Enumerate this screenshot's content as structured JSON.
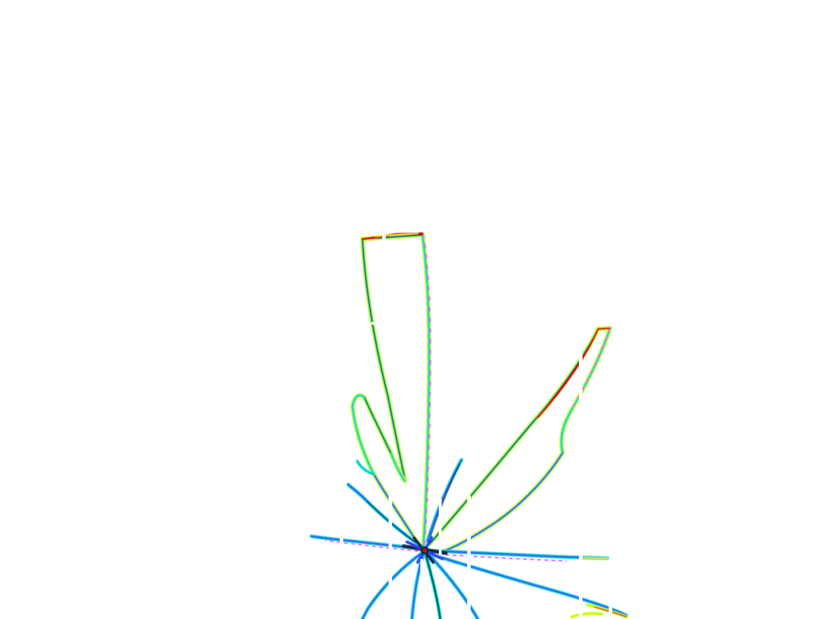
{
  "figure": {
    "background": "#ffffff",
    "palette": {
      "outer": "#c8ff00",
      "inner": "#00d8c8",
      "core": "#0a2a3a",
      "ray": "#3a3aff",
      "warm_tip": "#e00000",
      "magenta": "#ff00ff",
      "yellow": "#f0e000"
    }
  }
}
